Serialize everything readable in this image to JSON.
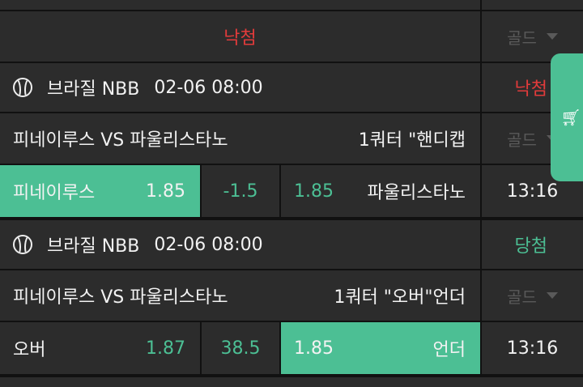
{
  "status_row": {
    "result": "낙첨",
    "dropdown": "골드"
  },
  "games": [
    {
      "league": "브라질 NBB",
      "datetime": "02-06 08:00",
      "result": "낙첨",
      "result_color": "#e23b3b",
      "matchup": "피네이루스 VS 파울리스타노",
      "market": "1쿼터 \"핸디캡",
      "dropdown": "골드",
      "home": "피네이루스",
      "home_odds": "1.85",
      "line": "-1.5",
      "away_odds": "1.85",
      "away": "파울리스타노",
      "time": "13:16",
      "selected": "home"
    },
    {
      "league": "브라질 NBB",
      "datetime": "02-06 08:00",
      "result": "당첨",
      "result_color": "#4cbf94",
      "matchup": "피네이루스 VS 파울리스타노",
      "market": "1쿼터 \"오버\"언더",
      "dropdown": "골드",
      "home": "오버",
      "home_odds": "1.87",
      "line": "38.5",
      "away_odds": "1.85",
      "away": "언더",
      "time": "13:16",
      "selected": "away"
    }
  ],
  "colors": {
    "accent": "#4cbf94",
    "loss": "#e23b3b",
    "background": "#2c2c2c"
  },
  "cart_icon": "shopping-cart-icon"
}
